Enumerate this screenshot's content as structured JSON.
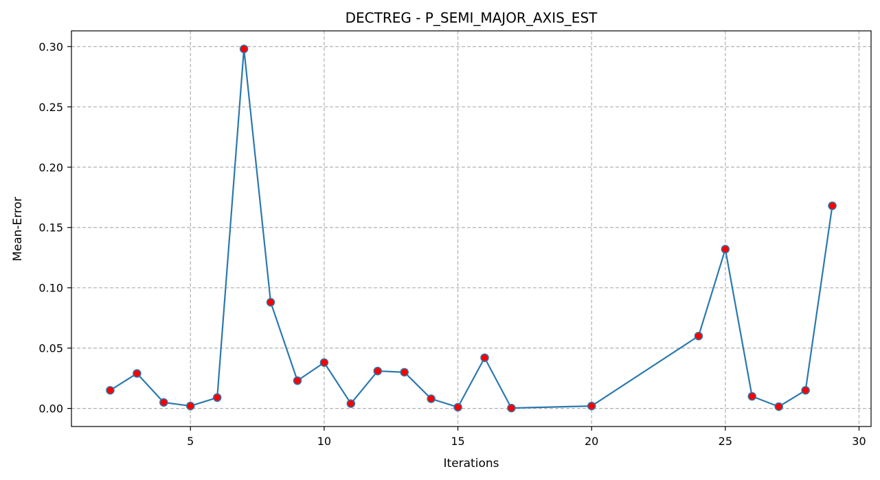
{
  "chart_data": {
    "type": "line",
    "title": "DECTREG - P_SEMI_MAJOR_AXIS_EST",
    "xlabel": "Iterations",
    "ylabel": "Mean-Error",
    "xlim": [
      0.55,
      30.45
    ],
    "ylim": [
      -0.015,
      0.313
    ],
    "xticks": [
      5,
      10,
      15,
      20,
      25,
      30
    ],
    "yticks": [
      0.0,
      0.05,
      0.1,
      0.15,
      0.2,
      0.25,
      0.3
    ],
    "yticks_labels": [
      "0.00",
      "0.05",
      "0.10",
      "0.15",
      "0.20",
      "0.25",
      "0.30"
    ],
    "grid": true,
    "line_color": "#2a78ad",
    "marker_color": "#ff0000",
    "series": [
      {
        "x": [
          2,
          3,
          4,
          5,
          6,
          7,
          8,
          9,
          10,
          11,
          12,
          13,
          14,
          15,
          16,
          17,
          20,
          24,
          25,
          26,
          27,
          28,
          29
        ],
        "y": [
          0.015,
          0.029,
          0.005,
          0.002,
          0.009,
          0.298,
          0.088,
          0.023,
          0.038,
          0.004,
          0.031,
          0.03,
          0.008,
          0.001,
          0.042,
          0.0003,
          0.002,
          0.06,
          0.132,
          0.01,
          0.0015,
          0.015,
          0.168
        ]
      }
    ]
  }
}
